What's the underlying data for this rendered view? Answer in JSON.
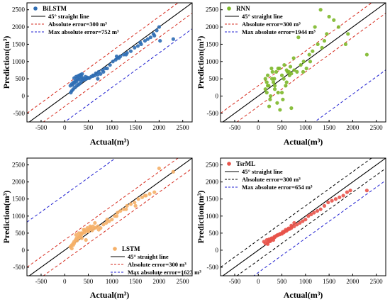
{
  "chart_data": [
    {
      "type": "scatter",
      "title": "",
      "xlabel": "Actual(m³)",
      "ylabel": "Prediction(m³)",
      "xlim": [
        -800,
        2700
      ],
      "ylim": [
        -750,
        2700
      ],
      "xticks": [
        -500,
        0,
        500,
        1000,
        1500,
        2000,
        2500
      ],
      "yticks": [
        -500,
        0,
        500,
        1000,
        1500,
        2000,
        2500
      ],
      "xtick_labels": [
        "-500",
        "0",
        "500",
        "1000",
        "1500",
        "2000",
        "2500"
      ],
      "ytick_labels": [
        "-500",
        "0",
        "500",
        "1000",
        "1500",
        "2000",
        "2500"
      ],
      "legend_position": "top-left",
      "grid": false,
      "point_color": "#2e6db4",
      "series": [
        {
          "name": "BiLSTM",
          "kind": "points",
          "x": [
            120,
            150,
            170,
            190,
            210,
            230,
            250,
            270,
            300,
            330,
            360,
            400,
            440,
            480,
            520,
            560,
            600,
            640,
            700,
            760,
            820,
            900,
            960,
            1020,
            1080,
            1120,
            1180,
            1250,
            1320,
            1400,
            1480,
            1550,
            1620,
            1700,
            1760,
            1820,
            1880,
            1950,
            2000,
            2020,
            180,
            220,
            260,
            290,
            320,
            350,
            380,
            420,
            460,
            500,
            200,
            240,
            280,
            310,
            340,
            370,
            150,
            130,
            600,
            660,
            720,
            800,
            860,
            1100,
            1150,
            1300,
            1600,
            1900,
            2300,
            700
          ],
          "y": [
            300,
            350,
            320,
            400,
            380,
            450,
            420,
            500,
            480,
            520,
            550,
            500,
            560,
            540,
            520,
            560,
            580,
            600,
            620,
            640,
            700,
            800,
            900,
            1000,
            1050,
            1100,
            1150,
            1200,
            1250,
            1300,
            1400,
            1450,
            1500,
            1600,
            1650,
            1700,
            1800,
            1900,
            2000,
            1600,
            200,
            250,
            300,
            330,
            360,
            420,
            460,
            480,
            500,
            520,
            520,
            560,
            580,
            600,
            620,
            640,
            150,
            100,
            600,
            660,
            700,
            750,
            800,
            1150,
            1100,
            1200,
            1550,
            1750,
            1650,
            500
          ]
        },
        {
          "name": "45° straight line",
          "kind": "line",
          "color": "#000000",
          "dash": false,
          "x": [
            -800,
            2700
          ],
          "y": [
            -800,
            2700
          ]
        },
        {
          "name": "Absolute error=300 m³",
          "kind": "band",
          "offset": 300,
          "color": "#d62d20",
          "dash": true
        },
        {
          "name": "Max absolute error=752 m³",
          "kind": "band",
          "offset": 752,
          "side": "below",
          "color": "#2020d0",
          "dash": true
        }
      ]
    },
    {
      "type": "scatter",
      "title": "",
      "xlabel": "Actual(m³)",
      "ylabel": "Prediction(m³)",
      "xlim": [
        -800,
        2700
      ],
      "ylim": [
        -750,
        2700
      ],
      "xticks": [
        -500,
        0,
        500,
        1000,
        1500,
        2000,
        2500
      ],
      "yticks": [
        -500,
        0,
        500,
        1000,
        1500,
        2000,
        2500
      ],
      "xtick_labels": [
        "-500",
        "0",
        "500",
        "1000",
        "1500",
        "2000",
        "2500"
      ],
      "ytick_labels": [
        "-500",
        "0",
        "500",
        "1000",
        "1500",
        "2000",
        "2500"
      ],
      "legend_position": "top-left",
      "grid": false,
      "point_color": "#7db82a",
      "series": [
        {
          "name": "RNN",
          "kind": "points",
          "x": [
            150,
            180,
            200,
            230,
            260,
            290,
            320,
            350,
            380,
            420,
            460,
            500,
            540,
            580,
            620,
            660,
            700,
            760,
            820,
            900,
            960,
            1020,
            1080,
            1150,
            1200,
            1260,
            1320,
            1400,
            1500,
            1600,
            1700,
            1850,
            2300,
            150,
            200,
            250,
            300,
            350,
            400,
            450,
            500,
            550,
            600,
            650,
            700,
            180,
            220,
            280,
            340,
            420,
            520,
            600,
            680,
            750,
            850,
            950,
            1100,
            1350,
            1450,
            1900
          ],
          "y": [
            200,
            100,
            300,
            -300,
            0,
            500,
            400,
            200,
            700,
            800,
            -400,
            600,
            500,
            300,
            700,
            600,
            650,
            750,
            700,
            900,
            1000,
            800,
            1200,
            1300,
            2000,
            1500,
            2500,
            1600,
            2300,
            2200,
            2000,
            1500,
            1200,
            500,
            600,
            -100,
            700,
            300,
            -200,
            800,
            100,
            900,
            400,
            700,
            -350,
            400,
            300,
            800,
            500,
            100,
            -100,
            750,
            850,
            1100,
            1700,
            700,
            1000,
            1400,
            1800,
            1800
          ]
        },
        {
          "name": "45° straight line",
          "kind": "line",
          "color": "#000000",
          "dash": false,
          "x": [
            -800,
            2700
          ],
          "y": [
            -800,
            2700
          ]
        },
        {
          "name": "Absolute error=300 m³",
          "kind": "band",
          "offset": 300,
          "color": "#d62d20",
          "dash": true
        },
        {
          "name": "Max absolute error=1944 m³",
          "kind": "band",
          "offset": 1944,
          "side": "below",
          "color": "#2020d0",
          "dash": true
        }
      ]
    },
    {
      "type": "scatter",
      "title": "",
      "xlabel": "Actual(m³)",
      "ylabel": "Prediction(m³)",
      "xlim": [
        -800,
        2700
      ],
      "ylim": [
        -750,
        2700
      ],
      "xticks": [
        -500,
        0,
        500,
        1000,
        1500,
        2000,
        2500
      ],
      "yticks": [
        -500,
        0,
        500,
        1000,
        1500,
        2000,
        2500
      ],
      "xtick_labels": [
        "-500",
        "0",
        "500",
        "1000",
        "1500",
        "2000",
        "2500"
      ],
      "ytick_labels": [
        "-500",
        "0",
        "500",
        "1000",
        "1500",
        "2000",
        "2500"
      ],
      "legend_position": "bottom-right",
      "grid": false,
      "point_color": "#f5b068",
      "series": [
        {
          "name": "LSTM",
          "kind": "points",
          "x": [
            120,
            150,
            180,
            200,
            230,
            260,
            290,
            320,
            350,
            380,
            420,
            460,
            500,
            540,
            580,
            620,
            660,
            700,
            760,
            820,
            880,
            940,
            1000,
            1060,
            1120,
            1180,
            1250,
            1320,
            1400,
            1480,
            1560,
            1640,
            1720,
            1800,
            1900,
            2000,
            2300,
            150,
            200,
            250,
            300,
            350,
            400,
            450,
            500,
            550,
            600,
            180,
            240,
            300,
            360,
            420,
            480,
            540,
            640,
            720,
            900,
            1100,
            1300,
            1500,
            1700
          ],
          "y": [
            100,
            150,
            200,
            250,
            300,
            280,
            350,
            400,
            450,
            500,
            520,
            560,
            600,
            620,
            580,
            640,
            660,
            700,
            650,
            750,
            800,
            850,
            900,
            1000,
            1100,
            1150,
            1200,
            1300,
            1350,
            1400,
            1500,
            1550,
            1600,
            1650,
            1700,
            2400,
            2300,
            50,
            200,
            350,
            400,
            500,
            600,
            300,
            550,
            650,
            700,
            150,
            450,
            500,
            350,
            600,
            650,
            700,
            800,
            600,
            900,
            1000,
            1200,
            1300,
            1600
          ]
        },
        {
          "name": "45° straight line",
          "kind": "line",
          "color": "#000000",
          "dash": false,
          "x": [
            -800,
            2700
          ],
          "y": [
            -800,
            2700
          ]
        },
        {
          "name": "Absolute error=300 m³",
          "kind": "band",
          "offset": 300,
          "color": "#d62d20",
          "dash": true
        },
        {
          "name": "Max absolute error=1623 m³",
          "kind": "band",
          "offset": 1623,
          "side": "above",
          "color": "#2020d0",
          "dash": true
        }
      ]
    },
    {
      "type": "scatter",
      "title": "",
      "xlabel": "Actual(m³)",
      "ylabel": "Prediction(m³)",
      "xlim": [
        -800,
        2700
      ],
      "ylim": [
        -750,
        2700
      ],
      "xticks": [
        -500,
        0,
        500,
        1000,
        1500,
        2000,
        2500
      ],
      "yticks": [
        -500,
        0,
        500,
        1000,
        1500,
        2000,
        2500
      ],
      "xtick_labels": [
        "-500",
        "0",
        "500",
        "1000",
        "1500",
        "2000",
        "2500"
      ],
      "ytick_labels": [
        "-500",
        "0",
        "500",
        "1000",
        "1500",
        "2000",
        "2500"
      ],
      "legend_position": "top-left",
      "grid": false,
      "point_color": "#e8534a",
      "series": [
        {
          "name": "TsrML",
          "kind": "points",
          "x": [
            120,
            150,
            180,
            200,
            230,
            260,
            290,
            320,
            350,
            380,
            420,
            460,
            500,
            540,
            580,
            620,
            660,
            700,
            760,
            820,
            880,
            940,
            1000,
            1060,
            1120,
            1180,
            1250,
            1320,
            1400,
            1480,
            1560,
            1640,
            1720,
            1800,
            1880,
            1950,
            2300,
            200,
            250,
            300,
            350,
            400,
            450,
            500,
            550,
            600,
            650,
            700,
            220,
            280,
            340,
            400,
            460,
            520,
            580,
            640,
            700,
            760
          ],
          "y": [
            250,
            200,
            300,
            220,
            320,
            280,
            350,
            300,
            400,
            420,
            450,
            480,
            500,
            520,
            560,
            600,
            620,
            650,
            700,
            750,
            800,
            850,
            900,
            1000,
            1050,
            1100,
            1150,
            1200,
            1300,
            1400,
            1450,
            1500,
            1550,
            1600,
            1700,
            1750,
            1750,
            180,
            260,
            330,
            380,
            430,
            460,
            480,
            550,
            570,
            620,
            680,
            300,
            350,
            390,
            440,
            470,
            540,
            600,
            640,
            720,
            800
          ]
        },
        {
          "name": "45° straight line",
          "kind": "line",
          "color": "#000000",
          "dash": false,
          "x": [
            -800,
            2700
          ],
          "y": [
            -800,
            2700
          ]
        },
        {
          "name": "Absolute error=300 m³",
          "kind": "band",
          "offset": 300,
          "color": "#000000",
          "dash": true
        },
        {
          "name": "Max absolute error=654 m³",
          "kind": "band",
          "offset": 654,
          "side": "below",
          "color": "#2020d0",
          "dash": true
        }
      ]
    }
  ]
}
